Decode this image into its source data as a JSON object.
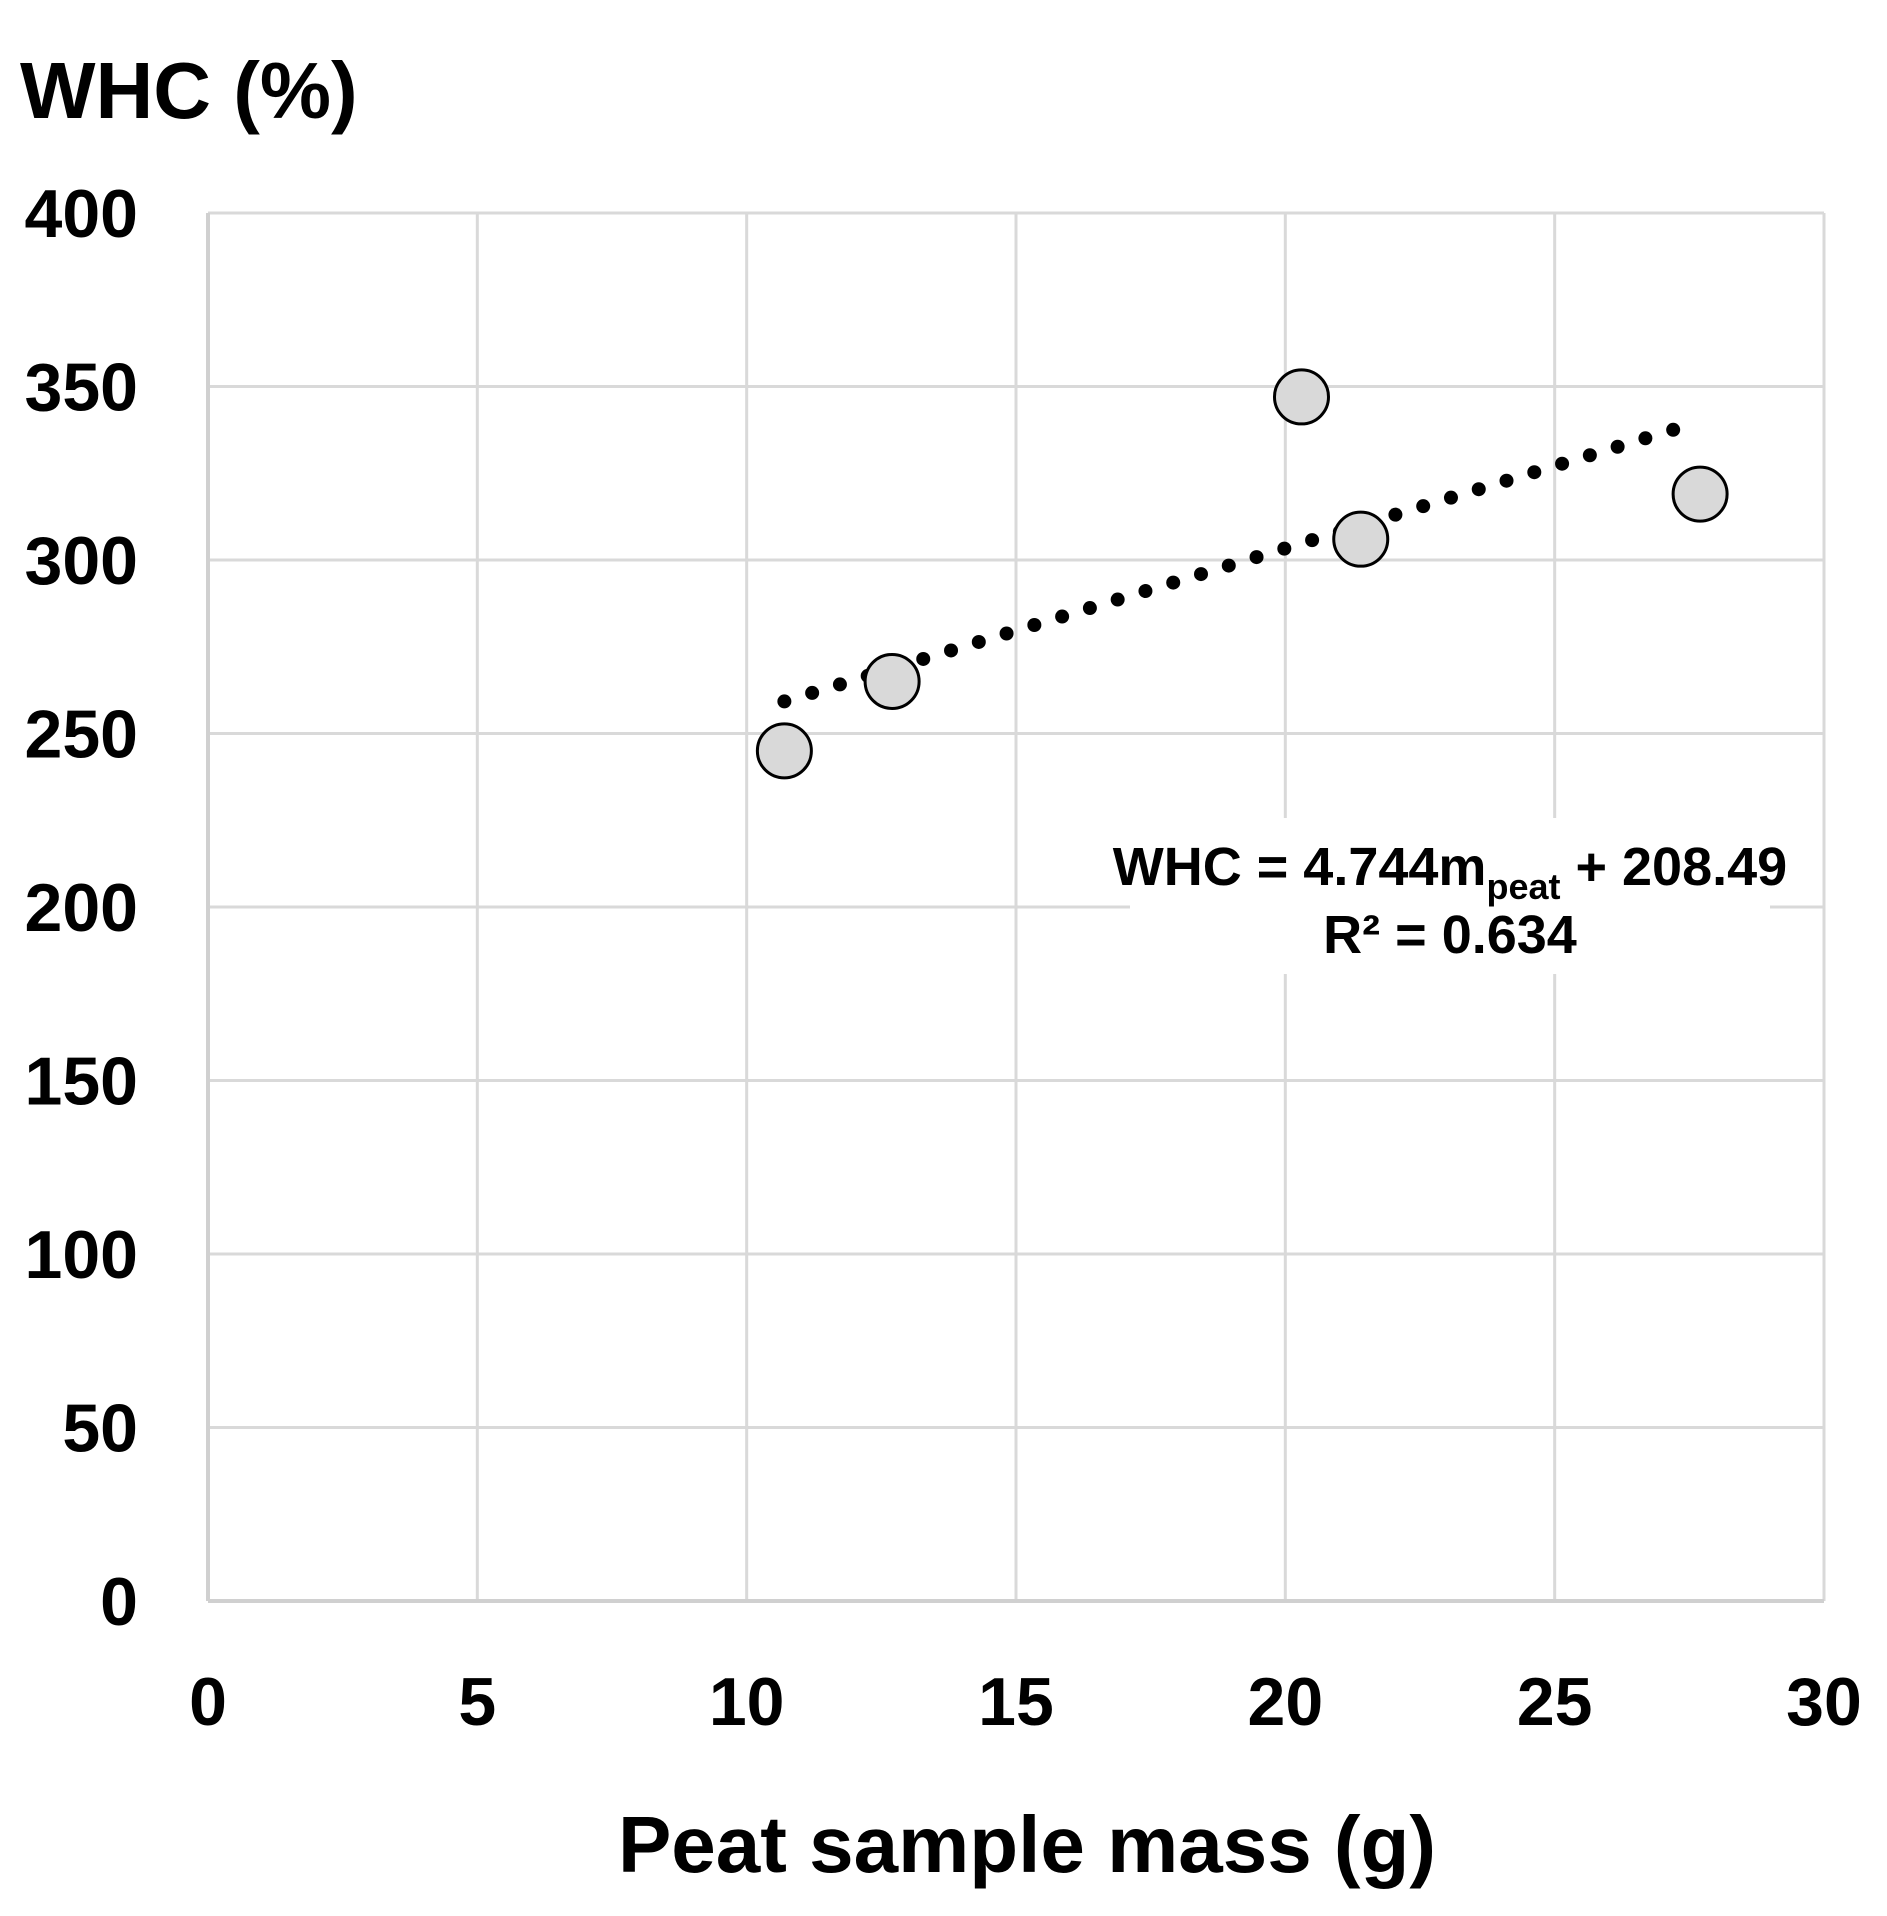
{
  "chart_data": {
    "type": "scatter",
    "title": "",
    "xlabel": "Peat sample mass (g)",
    "ylabel": "WHC (%)",
    "xlim": [
      0,
      30
    ],
    "ylim": [
      0,
      400
    ],
    "x_ticks": [
      0,
      5,
      10,
      15,
      20,
      25,
      30
    ],
    "y_ticks": [
      0,
      50,
      100,
      150,
      200,
      250,
      300,
      350,
      400
    ],
    "grid": true,
    "series": [
      {
        "name": "WHC",
        "x": [
          10.7,
          12.7,
          20.3,
          21.4,
          27.7
        ],
        "y": [
          245,
          265,
          347,
          306,
          319
        ],
        "marker": "circle",
        "color": "#d9d9d9"
      }
    ],
    "trendline": {
      "type": "linear",
      "style": "dotted",
      "slope": 4.744,
      "intercept": 208.49,
      "x_range": [
        10.7,
        27.2
      ],
      "equation_parts": {
        "lhs": "WHC = 4.744m",
        "subscript": "peat",
        "rhs": " + 208.49"
      },
      "r2_label": "R² = 0.634"
    }
  }
}
